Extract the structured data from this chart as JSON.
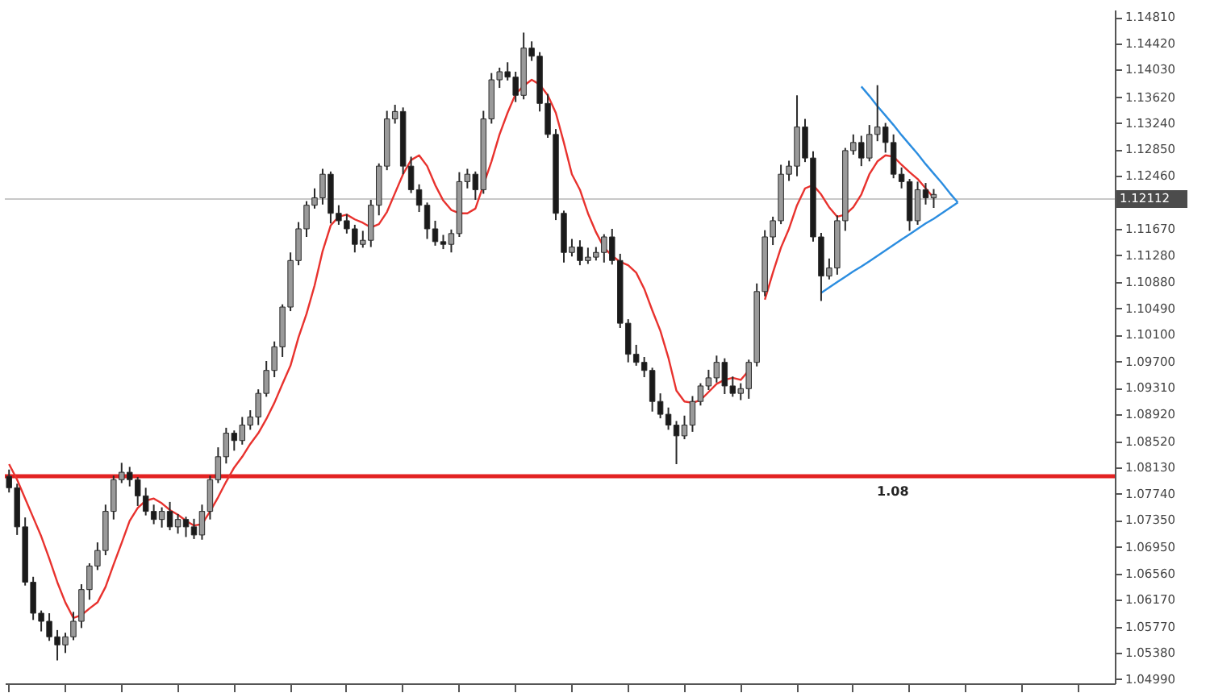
{
  "chart_data": {
    "type": "candlestick",
    "tick_labels": "y",
    "grid": false,
    "legend": false,
    "categories": [
      null,
      null,
      null,
      null,
      null,
      null,
      null,
      null,
      null,
      null,
      null,
      null,
      null,
      null,
      null,
      null,
      null,
      null,
      null,
      null,
      null,
      null,
      null,
      null,
      null,
      null,
      null,
      null,
      null,
      null,
      null,
      null,
      null,
      null,
      null,
      null,
      null,
      null,
      null,
      null,
      null,
      null,
      null,
      null,
      null,
      null,
      null,
      null,
      null,
      null,
      null,
      null,
      null,
      null,
      null,
      null,
      null,
      null,
      null,
      null,
      null,
      null,
      null,
      null,
      null,
      null,
      null,
      null,
      null,
      null,
      null,
      null,
      null,
      null,
      null,
      null,
      null,
      null,
      null,
      null,
      null,
      null,
      null,
      null,
      null,
      null,
      null,
      null,
      null,
      null,
      null,
      null,
      null,
      null,
      null,
      null,
      null,
      null,
      null,
      null,
      null,
      null,
      null,
      null,
      null,
      null,
      null,
      null,
      null,
      null,
      null,
      null,
      null,
      null,
      null,
      null,
      null,
      null,
      null,
      null,
      null,
      null,
      null,
      null,
      null,
      null,
      null,
      null,
      null,
      null,
      null,
      null,
      null,
      null,
      null,
      null,
      null,
      null
    ],
    "ohlc": [
      [
        1.08,
        1.081,
        1.0776,
        1.0783
      ],
      [
        1.0783,
        1.0789,
        1.0713,
        1.0725
      ],
      [
        1.0725,
        1.0739,
        1.0638,
        1.0643
      ],
      [
        1.0643,
        1.0651,
        1.0587,
        1.0597
      ],
      [
        1.0597,
        1.0601,
        1.057,
        1.0585
      ],
      [
        1.0585,
        1.0597,
        1.0556,
        1.0562
      ],
      [
        1.0562,
        1.0572,
        1.0527,
        1.055
      ],
      [
        1.055,
        1.0568,
        1.0538,
        1.0562
      ],
      [
        1.0562,
        1.0599,
        1.0557,
        1.0585
      ],
      [
        1.0585,
        1.064,
        1.0575,
        1.0632
      ],
      [
        1.0632,
        1.0671,
        1.0617,
        1.0667
      ],
      [
        1.0667,
        1.0702,
        1.0661,
        1.069
      ],
      [
        1.069,
        1.0758,
        1.0683,
        1.0748
      ],
      [
        1.0748,
        1.0801,
        1.0736,
        1.0795
      ],
      [
        1.0795,
        1.082,
        1.079,
        1.0806
      ],
      [
        1.0806,
        1.0814,
        1.0785,
        1.0795
      ],
      [
        1.0795,
        1.0799,
        1.0756,
        1.0771
      ],
      [
        1.0771,
        1.0783,
        1.0742,
        1.0748
      ],
      [
        1.0748,
        1.0758,
        1.0729,
        1.0736
      ],
      [
        1.0736,
        1.0754,
        1.0724,
        1.0748
      ],
      [
        1.0748,
        1.0762,
        1.072,
        1.0725
      ],
      [
        1.0725,
        1.0744,
        1.0715,
        1.0736
      ],
      [
        1.0736,
        1.074,
        1.071,
        1.0725
      ],
      [
        1.0725,
        1.0737,
        1.0707,
        1.0713
      ],
      [
        1.0713,
        1.0758,
        1.0706,
        1.0748
      ],
      [
        1.0748,
        1.0801,
        1.0736,
        1.0795
      ],
      [
        1.0795,
        1.0843,
        1.079,
        1.0829
      ],
      [
        1.0829,
        1.0872,
        1.0819,
        1.0864
      ],
      [
        1.0864,
        1.0868,
        1.0838,
        1.0853
      ],
      [
        1.0853,
        1.0888,
        1.0847,
        1.0876
      ],
      [
        1.0876,
        1.0898,
        1.0869,
        1.0888
      ],
      [
        1.0888,
        1.0929,
        1.0876,
        1.0923
      ],
      [
        1.0923,
        1.0971,
        1.0918,
        1.0957
      ],
      [
        1.0957,
        1.1,
        1.0947,
        1.0992
      ],
      [
        1.0992,
        1.1055,
        1.0977,
        1.1051
      ],
      [
        1.1051,
        1.1132,
        1.1045,
        1.112
      ],
      [
        1.112,
        1.1177,
        1.1113,
        1.1167
      ],
      [
        1.1167,
        1.1208,
        1.1155,
        1.1202
      ],
      [
        1.1202,
        1.1227,
        1.1197,
        1.1213
      ],
      [
        1.1213,
        1.1256,
        1.1203,
        1.1248
      ],
      [
        1.1248,
        1.1252,
        1.1175,
        1.119
      ],
      [
        1.119,
        1.1202,
        1.1173,
        1.1179
      ],
      [
        1.1179,
        1.1189,
        1.116,
        1.1167
      ],
      [
        1.1167,
        1.1173,
        1.1132,
        1.1144
      ],
      [
        1.1144,
        1.1164,
        1.1139,
        1.115
      ],
      [
        1.115,
        1.121,
        1.114,
        1.1202
      ],
      [
        1.1202,
        1.1264,
        1.1187,
        1.126
      ],
      [
        1.126,
        1.1342,
        1.1254,
        1.133
      ],
      [
        1.133,
        1.1351,
        1.1323,
        1.1341
      ],
      [
        1.1341,
        1.1347,
        1.1248,
        1.126
      ],
      [
        1.126,
        1.1274,
        1.122,
        1.1225
      ],
      [
        1.1225,
        1.1233,
        1.1192,
        1.1202
      ],
      [
        1.1202,
        1.1206,
        1.1152,
        1.1167
      ],
      [
        1.1167,
        1.1179,
        1.1142,
        1.1148
      ],
      [
        1.1148,
        1.1158,
        1.1137,
        1.1144
      ],
      [
        1.1144,
        1.1166,
        1.1132,
        1.116
      ],
      [
        1.116,
        1.1251,
        1.1155,
        1.1237
      ],
      [
        1.1237,
        1.1256,
        1.1227,
        1.1248
      ],
      [
        1.1248,
        1.1252,
        1.121,
        1.1225
      ],
      [
        1.1225,
        1.1342,
        1.1219,
        1.133
      ],
      [
        1.133,
        1.1398,
        1.1323,
        1.1388
      ],
      [
        1.1388,
        1.1406,
        1.1376,
        1.14
      ],
      [
        1.14,
        1.1414,
        1.1387,
        1.1392
      ],
      [
        1.1392,
        1.14,
        1.1355,
        1.1365
      ],
      [
        1.1365,
        1.1458,
        1.1359,
        1.1435
      ],
      [
        1.1435,
        1.1445,
        1.1416,
        1.1423
      ],
      [
        1.1423,
        1.1429,
        1.1341,
        1.1353
      ],
      [
        1.1353,
        1.1367,
        1.1302,
        1.1307
      ],
      [
        1.1307,
        1.1315,
        1.118,
        1.119
      ],
      [
        1.119,
        1.1194,
        1.1117,
        1.1132
      ],
      [
        1.1132,
        1.1152,
        1.1126,
        1.114
      ],
      [
        1.114,
        1.115,
        1.1113,
        1.112
      ],
      [
        1.112,
        1.1139,
        1.1115,
        1.1125
      ],
      [
        1.1125,
        1.114,
        1.112,
        1.1132
      ],
      [
        1.1132,
        1.1159,
        1.1117,
        1.1155
      ],
      [
        1.1155,
        1.1167,
        1.1114,
        1.112
      ],
      [
        1.112,
        1.113,
        1.102,
        1.1027
      ],
      [
        1.1027,
        1.1033,
        1.0969,
        1.0981
      ],
      [
        1.0981,
        1.0995,
        1.0964,
        1.0969
      ],
      [
        1.0969,
        1.0977,
        1.0947,
        1.0957
      ],
      [
        1.0957,
        1.0961,
        1.0896,
        1.0911
      ],
      [
        1.0911,
        1.0923,
        1.0886,
        1.0892
      ],
      [
        1.0892,
        1.0902,
        1.0869,
        1.0876
      ],
      [
        1.0876,
        1.0882,
        1.0818,
        1.086
      ],
      [
        1.086,
        1.089,
        1.0855,
        1.0876
      ],
      [
        1.0876,
        1.0919,
        1.0866,
        1.0911
      ],
      [
        1.0911,
        1.0938,
        1.0905,
        1.0934
      ],
      [
        1.0934,
        1.0958,
        1.0928,
        1.0946
      ],
      [
        1.0946,
        1.0979,
        1.0939,
        1.0969
      ],
      [
        1.0969,
        1.0975,
        1.0922,
        1.0934
      ],
      [
        1.0934,
        1.0948,
        1.0918,
        1.0923
      ],
      [
        1.0923,
        1.0938,
        1.0913,
        1.093
      ],
      [
        1.093,
        1.0973,
        1.0915,
        1.0969
      ],
      [
        1.0969,
        1.1086,
        1.0963,
        1.1074
      ],
      [
        1.1074,
        1.1165,
        1.1067,
        1.1155
      ],
      [
        1.1155,
        1.1185,
        1.1143,
        1.1179
      ],
      [
        1.1179,
        1.1262,
        1.1174,
        1.1248
      ],
      [
        1.1248,
        1.1268,
        1.1238,
        1.126
      ],
      [
        1.126,
        1.1365,
        1.1245,
        1.1318
      ],
      [
        1.1318,
        1.133,
        1.1266,
        1.1272
      ],
      [
        1.1272,
        1.1282,
        1.1148,
        1.1155
      ],
      [
        1.1155,
        1.1161,
        1.106,
        1.1097
      ],
      [
        1.1097,
        1.1123,
        1.1092,
        1.1109
      ],
      [
        1.1109,
        1.1187,
        1.1099,
        1.1179
      ],
      [
        1.1179,
        1.1287,
        1.1164,
        1.1283
      ],
      [
        1.1283,
        1.1307,
        1.1277,
        1.1295
      ],
      [
        1.1295,
        1.1305,
        1.126,
        1.1272
      ],
      [
        1.1272,
        1.1321,
        1.1267,
        1.1307
      ],
      [
        1.1307,
        1.138,
        1.1297,
        1.1318
      ],
      [
        1.1318,
        1.1324,
        1.128,
        1.1295
      ],
      [
        1.1295,
        1.1307,
        1.1242,
        1.1248
      ],
      [
        1.1248,
        1.1258,
        1.1227,
        1.1237
      ],
      [
        1.1237,
        1.1241,
        1.1164,
        1.1179
      ],
      [
        1.1179,
        1.1237,
        1.1173,
        1.1225
      ],
      [
        1.1225,
        1.1235,
        1.1203,
        1.1213
      ],
      [
        1.1213,
        1.1226,
        1.1198,
        1.1218
      ],
      null,
      null,
      null,
      null,
      null,
      null,
      null,
      null,
      null,
      null,
      null,
      null,
      null,
      null,
      null,
      null,
      null,
      null,
      null,
      null,
      null,
      null
    ],
    "series": [
      {
        "type": "line",
        "color": "#e8322e",
        "values": [
          1.0818,
          1.0795,
          1.0767,
          1.0739,
          1.0711,
          1.0678,
          1.0643,
          1.0613,
          1.059,
          1.0594,
          1.0604,
          1.0613,
          1.0636,
          1.0669,
          1.0701,
          1.0734,
          1.0753,
          1.0764,
          1.0767,
          1.076,
          1.075,
          1.0743,
          1.0734,
          1.0727,
          1.0729,
          1.0748,
          1.0769,
          1.0792,
          1.0813,
          1.0829,
          1.0848,
          1.0864,
          1.0885,
          1.0909,
          1.0937,
          1.0964,
          1.1006,
          1.1041,
          1.1083,
          1.1134,
          1.1172,
          1.1185,
          1.1188,
          1.1181,
          1.1176,
          1.1169,
          1.1174,
          1.1192,
          1.122,
          1.1248,
          1.1269,
          1.1276,
          1.126,
          1.1232,
          1.1209,
          1.1195,
          1.119,
          1.119,
          1.1197,
          1.1232,
          1.1267,
          1.1307,
          1.1339,
          1.1367,
          1.1379,
          1.1388,
          1.1381,
          1.1365,
          1.1339,
          1.1295,
          1.1248,
          1.1225,
          1.119,
          1.1162,
          1.1139,
          1.1127,
          1.1118,
          1.1113,
          1.1102,
          1.1078,
          1.1046,
          1.1016,
          1.0976,
          1.0927,
          1.0911,
          1.0909,
          1.0913,
          1.0925,
          1.0937,
          1.0943,
          1.0946,
          1.0943,
          1.0957,
          null,
          1.1062,
          1.1102,
          1.1139,
          1.1167,
          1.1202,
          1.1227,
          1.1232,
          1.1218,
          1.1199,
          1.1185,
          1.1188,
          1.1199,
          1.1218,
          1.1248,
          1.1267,
          1.1276,
          1.1274,
          1.1262,
          1.1251,
          1.1241,
          1.1227,
          1.1213,
          null,
          null,
          null,
          null,
          null,
          null,
          null,
          null,
          null,
          null,
          null,
          null,
          null,
          null,
          null,
          null,
          null,
          null,
          null,
          null,
          null,
          null
        ]
      },
      {
        "type": "line",
        "color": "#2b8de0",
        "values": [
          null,
          null,
          null,
          null,
          null,
          null,
          null,
          null,
          null,
          null,
          null,
          null,
          null,
          null,
          null,
          null,
          null,
          null,
          null,
          null,
          null,
          null,
          null,
          null,
          null,
          null,
          null,
          null,
          null,
          null,
          null,
          null,
          null,
          null,
          null,
          null,
          null,
          null,
          null,
          null,
          null,
          null,
          null,
          null,
          null,
          null,
          null,
          null,
          null,
          null,
          null,
          null,
          null,
          null,
          null,
          null,
          null,
          null,
          null,
          null,
          null,
          null,
          null,
          null,
          null,
          null,
          null,
          null,
          null,
          null,
          null,
          null,
          null,
          null,
          null,
          null,
          null,
          null,
          null,
          null,
          null,
          null,
          null,
          null,
          null,
          null,
          null,
          null,
          null,
          null,
          null,
          null,
          null,
          null,
          null,
          null,
          null,
          null,
          null,
          null,
          null,
          null,
          null,
          null,
          null,
          null,
          1.1378,
          1.1364,
          1.1349,
          1.1335,
          1.1321,
          1.1306,
          1.1292,
          1.1278,
          1.1263,
          1.1249,
          1.1235,
          1.122,
          1.1206,
          null,
          null,
          null,
          null,
          null,
          null,
          null,
          null,
          null,
          null,
          null,
          null,
          null,
          null,
          null,
          null,
          null,
          null,
          null
        ]
      },
      {
        "type": "line",
        "color": "#2b8de0",
        "values": [
          null,
          null,
          null,
          null,
          null,
          null,
          null,
          null,
          null,
          null,
          null,
          null,
          null,
          null,
          null,
          null,
          null,
          null,
          null,
          null,
          null,
          null,
          null,
          null,
          null,
          null,
          null,
          null,
          null,
          null,
          null,
          null,
          null,
          null,
          null,
          null,
          null,
          null,
          null,
          null,
          null,
          null,
          null,
          null,
          null,
          null,
          null,
          null,
          null,
          null,
          null,
          null,
          null,
          null,
          null,
          null,
          null,
          null,
          null,
          null,
          null,
          null,
          null,
          null,
          null,
          null,
          null,
          null,
          null,
          null,
          null,
          null,
          null,
          null,
          null,
          null,
          null,
          null,
          null,
          null,
          null,
          null,
          null,
          null,
          null,
          null,
          null,
          null,
          null,
          null,
          null,
          null,
          null,
          null,
          null,
          null,
          null,
          null,
          null,
          null,
          null,
          1.1072,
          1.108,
          1.1088,
          1.1096,
          1.1104,
          1.1111,
          1.1119,
          1.1127,
          1.1135,
          1.1143,
          1.1151,
          1.1159,
          1.1167,
          1.1175,
          1.1182,
          1.119,
          1.1198,
          1.1206,
          null,
          null,
          null,
          null,
          null,
          null,
          null,
          null,
          null,
          null,
          null,
          null,
          null,
          null,
          null,
          null,
          null,
          null,
          null
        ]
      }
    ],
    "ylim": [
      1.0493,
      1.1492
    ],
    "yticks": [
      {
        "value": 1.1481,
        "label": "1.14810"
      },
      {
        "value": 1.1442,
        "label": "1.14420"
      },
      {
        "value": 1.1403,
        "label": "1.14030"
      },
      {
        "value": 1.1362,
        "label": "1.13620"
      },
      {
        "value": 1.1324,
        "label": "1.13240"
      },
      {
        "value": 1.1285,
        "label": "1.12850"
      },
      {
        "value": 1.1246,
        "label": "1.12460"
      },
      {
        "value": 1.1167,
        "label": "1.11670"
      },
      {
        "value": 1.1128,
        "label": "1.11280"
      },
      {
        "value": 1.1088,
        "label": "1.10880"
      },
      {
        "value": 1.1049,
        "label": "1.10490"
      },
      {
        "value": 1.101,
        "label": "1.10100"
      },
      {
        "value": 1.097,
        "label": "1.09700"
      },
      {
        "value": 1.0931,
        "label": "1.09310"
      },
      {
        "value": 1.0892,
        "label": "1.08920"
      },
      {
        "value": 1.0852,
        "label": "1.08520"
      },
      {
        "value": 1.0813,
        "label": "1.08130"
      },
      {
        "value": 1.0774,
        "label": "1.07740"
      },
      {
        "value": 1.0735,
        "label": "1.07350"
      },
      {
        "value": 1.0695,
        "label": "1.06950"
      },
      {
        "value": 1.0656,
        "label": "1.06560"
      },
      {
        "value": 1.0617,
        "label": "1.06170"
      },
      {
        "value": 1.0577,
        "label": "1.05770"
      },
      {
        "value": 1.0538,
        "label": "1.05380"
      },
      {
        "value": 1.0499,
        "label": "1.04990"
      }
    ],
    "ref_lines": [
      {
        "axis": "y",
        "value": 1.08,
        "label": "1.08",
        "color": "#e32222"
      },
      {
        "axis": "y",
        "value": 1.12112,
        "label": "1.12112",
        "color": "#c8c8c8"
      }
    ]
  }
}
